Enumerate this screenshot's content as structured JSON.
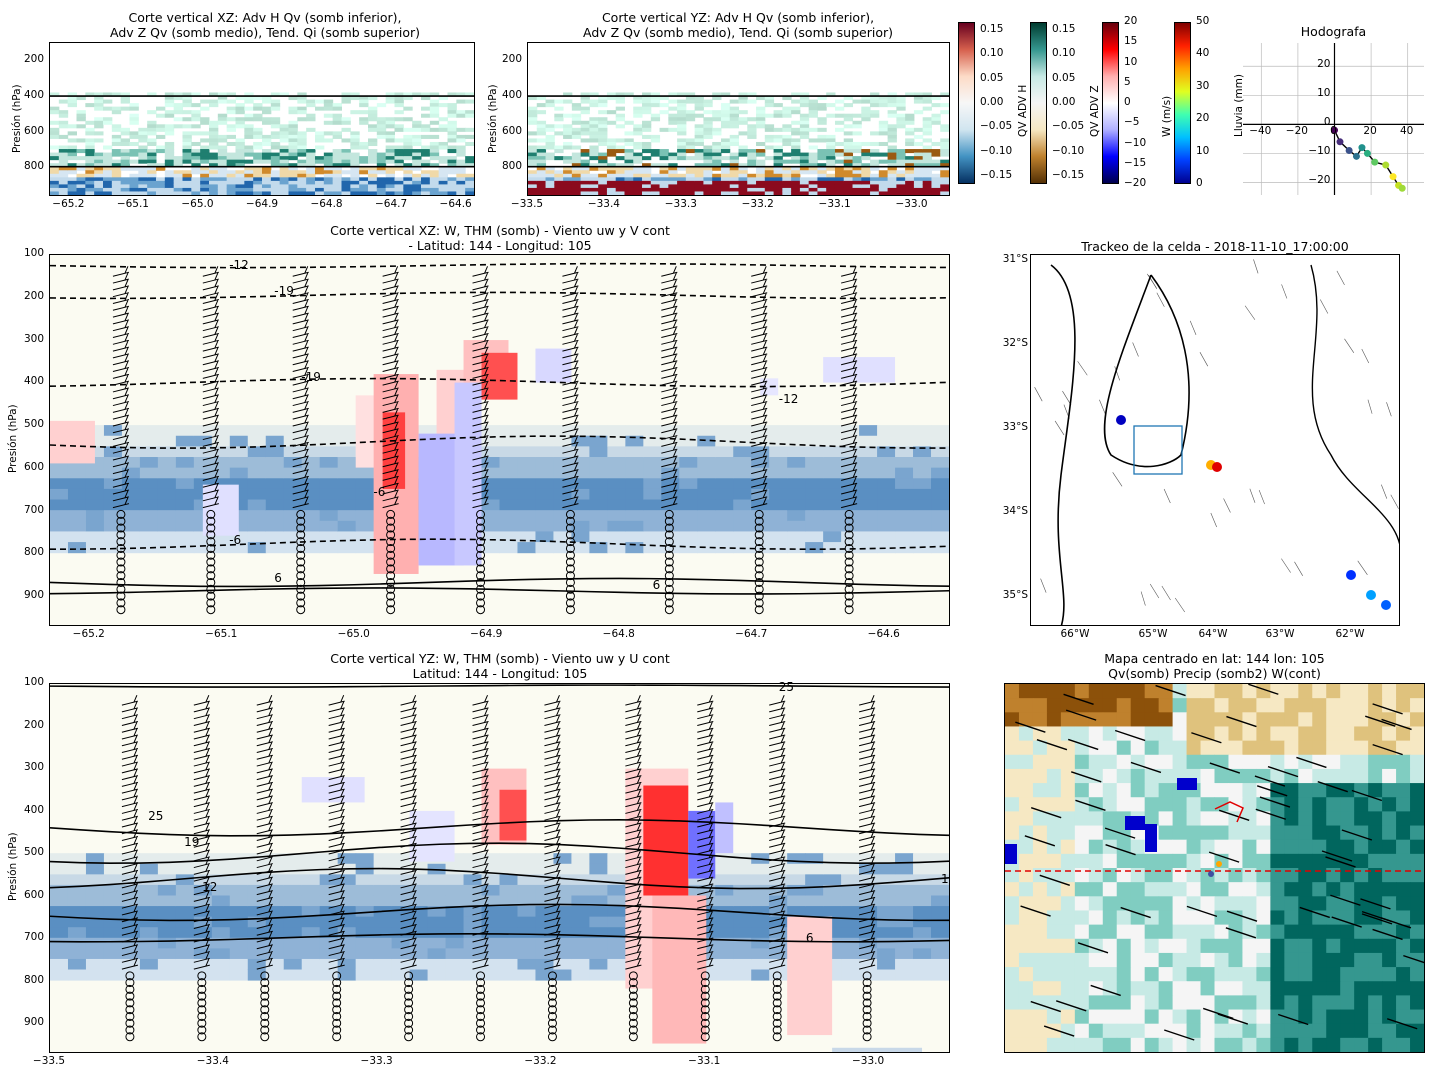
{
  "figure": {
    "panel_xz_adv": {
      "title": "Corte vertical XZ: Adv H Qv (somb inferior),\nAdv Z Qv (somb medio), Tend. Qi (somb superior)",
      "ylabel": "Presión (hPa)",
      "yticks": [
        "200",
        "400",
        "600",
        "800"
      ],
      "xticks": [
        "−65.2",
        "−65.1",
        "−65.0",
        "−64.9",
        "−64.8",
        "−64.7",
        "−64.6"
      ]
    },
    "panel_yz_adv": {
      "title": "Corte vertical YZ: Adv H Qv (somb inferior),\nAdv Z Qv (somb medio), Tend. Qi (somb superior)",
      "ylabel": "Presión (hPa)",
      "yticks": [
        "200",
        "400",
        "600",
        "800"
      ],
      "xticks": [
        "−33.5",
        "−33.4",
        "−33.3",
        "−33.2",
        "−33.1",
        "−33.0"
      ]
    },
    "colorbars": [
      {
        "label": "QV ADV H",
        "ticks": [
          "0.15",
          "0.10",
          "0.05",
          "0.00",
          "−0.05",
          "−0.10",
          "−0.15"
        ]
      },
      {
        "label": "QV ADV Z",
        "ticks": [
          "0.15",
          "0.10",
          "0.05",
          "0.00",
          "−0.05",
          "−0.10",
          "−0.15"
        ]
      },
      {
        "label": "W (m/s)",
        "ticks": [
          "20",
          "15",
          "10",
          "5",
          "0",
          "−5",
          "−10",
          "−15",
          "−20"
        ]
      },
      {
        "label": "Lluvia (mm)",
        "ticks": [
          "50",
          "40",
          "30",
          "20",
          "10",
          "0"
        ]
      }
    ],
    "hodograph": {
      "title": "Hodografa",
      "xticks": [
        "−40",
        "−20",
        "0",
        "20",
        "40"
      ],
      "yticks": [
        "20",
        "10",
        "0",
        "−10",
        "−20"
      ]
    },
    "panel_xz_main": {
      "title": "Corte vertical XZ: W, THM (somb) - Viento uw y V cont\n- Latitud: 144 - Longitud: 105",
      "ylabel": "Presión (hPa)",
      "yticks": [
        "100",
        "200",
        "300",
        "400",
        "500",
        "600",
        "700",
        "800",
        "900"
      ],
      "xticks": [
        "−65.2",
        "−65.1",
        "−65.0",
        "−64.9",
        "−64.8",
        "−64.7",
        "−64.6"
      ],
      "contour_labels": [
        "-12",
        "-19",
        "-19",
        "-12",
        "-6",
        "-6",
        "6",
        "6"
      ]
    },
    "panel_track": {
      "title": "Trackeo de la celda - 2018-11-10_17:00:00",
      "lat_labels": [
        "31°S",
        "32°S",
        "33°S",
        "34°S",
        "35°S"
      ],
      "lon_labels": [
        "66°W",
        "65°W",
        "64°W",
        "63°W",
        "62°W"
      ]
    },
    "panel_yz_main": {
      "title": "Corte vertical YZ: W, THM (somb) - Viento uw y U cont\nLatitud: 144 - Longitud: 105",
      "ylabel": "Presión (hPa)",
      "yticks": [
        "100",
        "200",
        "300",
        "400",
        "500",
        "600",
        "700",
        "800",
        "900"
      ],
      "xticks": [
        "−33.5",
        "−33.4",
        "−33.3",
        "−33.2",
        "−33.1",
        "−33.0"
      ],
      "contour_labels": [
        "25",
        "25",
        "19",
        "12",
        "6",
        "1"
      ]
    },
    "panel_map": {
      "title": "Mapa centrado en lat: 144 lon: 105\nQv(somb) Precip (somb2) W(cont)"
    }
  },
  "chart_data": [
    {
      "type": "heatmap",
      "title": "Corte vertical XZ: Adv H Qv (somb inferior), Adv Z Qv (somb medio), Tend. Qi (somb superior)",
      "xlim": [
        -65.23,
        -64.57
      ],
      "ylim": [
        960,
        100
      ],
      "lines_hpa": [
        400,
        800
      ]
    },
    {
      "type": "heatmap",
      "title": "Corte vertical YZ: Adv H Qv (somb inferior), Adv Z Qv (somb medio), Tend. Qi (somb superior)",
      "xlim": [
        -33.5,
        -32.95
      ],
      "ylim": [
        960,
        100
      ],
      "lines_hpa": [
        400,
        800
      ]
    },
    {
      "type": "line",
      "title": "Hodografa",
      "x": [
        0,
        3,
        8,
        12,
        15,
        18,
        22,
        28,
        32,
        35,
        37
      ],
      "y": [
        -2,
        -6,
        -9,
        -11,
        -8,
        -10,
        -13,
        -14,
        -18,
        -21,
        -22
      ],
      "xlim": [
        -50,
        50
      ],
      "ylim": [
        -25,
        28
      ]
    },
    {
      "type": "heatmap",
      "title": "Corte vertical XZ: W, THM (somb) - Viento uw y V cont",
      "xlim": [
        -65.22,
        -64.55
      ],
      "ylim": [
        970,
        100
      ],
      "w_updraft_centers": [
        {
          "lon": -64.97,
          "p": 550
        },
        {
          "lon": -64.88,
          "p": 380
        }
      ],
      "contours": [
        {
          "label": "-12",
          "p": 125
        },
        {
          "label": "-19",
          "p": 190
        },
        {
          "label": "-12",
          "p": 400
        },
        {
          "label": "-6",
          "p": 560
        },
        {
          "label": "-6",
          "p": 780
        },
        {
          "label": "6",
          "p": 870
        }
      ]
    },
    {
      "type": "heatmap",
      "title": "Corte vertical YZ: W, THM (somb) - Viento uw y U cont",
      "xlim": [
        -33.5,
        -32.95
      ],
      "ylim": [
        970,
        100
      ],
      "w_updraft_centers": [
        {
          "lat": -33.2,
          "p": 380
        },
        {
          "lat": -33.12,
          "p": 420
        }
      ],
      "contours": [
        {
          "label": "25",
          "p": 105
        },
        {
          "label": "19",
          "p": 480
        },
        {
          "label": "12",
          "p": 590
        },
        {
          "label": "6",
          "p": 700
        },
        {
          "label": "1",
          "p": 580
        }
      ]
    }
  ]
}
